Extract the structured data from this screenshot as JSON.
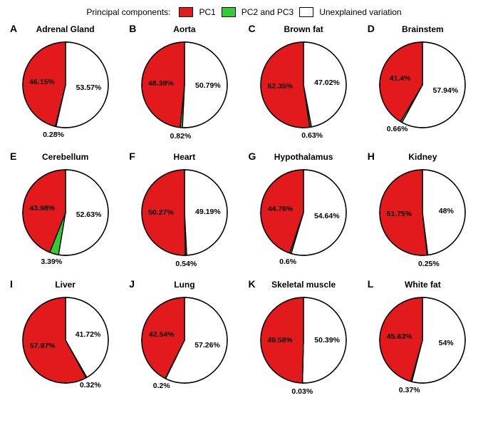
{
  "legend": {
    "title": "Principal components:",
    "items": [
      {
        "label": "PC1",
        "color": "#e31a1c"
      },
      {
        "label": "PC2 and PC3",
        "color": "#33cc33"
      },
      {
        "label": "Unexplained variation",
        "color": "#ffffff"
      }
    ]
  },
  "styling": {
    "stroke": "#000000",
    "stroke_width": 1.4,
    "radius": 60,
    "label_fontsize": 10.5,
    "title_fontsize": 12,
    "letter_fontsize": 14,
    "font_family": "Arial",
    "background": "#ffffff"
  },
  "panels": [
    {
      "letter": "A",
      "title": "Adrenal Gland",
      "pc1": 46.15,
      "pc23": 0.28,
      "unexp": 53.57
    },
    {
      "letter": "B",
      "title": "Aorta",
      "pc1": 48.38,
      "pc23": 0.82,
      "unexp": 50.79
    },
    {
      "letter": "C",
      "title": "Brown fat",
      "pc1": 52.35,
      "pc23": 0.63,
      "unexp": 47.02
    },
    {
      "letter": "D",
      "title": "Brainstem",
      "pc1": 41.4,
      "pc23": 0.66,
      "unexp": 57.94
    },
    {
      "letter": "E",
      "title": "Cerebellum",
      "pc1": 43.98,
      "pc23": 3.39,
      "unexp": 52.63
    },
    {
      "letter": "F",
      "title": "Heart",
      "pc1": 50.27,
      "pc23": 0.54,
      "unexp": 49.19
    },
    {
      "letter": "G",
      "title": "Hypothalamus",
      "pc1": 44.76,
      "pc23": 0.6,
      "unexp": 54.64
    },
    {
      "letter": "H",
      "title": "Kidney",
      "pc1": 51.75,
      "pc23": 0.25,
      "unexp": 48.0
    },
    {
      "letter": "I",
      "title": "Liver",
      "pc1": 57.97,
      "pc23": 0.32,
      "unexp": 41.72
    },
    {
      "letter": "J",
      "title": "Lung",
      "pc1": 42.54,
      "pc23": 0.2,
      "unexp": 57.26
    },
    {
      "letter": "K",
      "title": "Skeletal muscle",
      "pc1": 49.58,
      "pc23": 0.03,
      "unexp": 50.39
    },
    {
      "letter": "L",
      "title": "White fat",
      "pc1": 45.63,
      "pc23": 0.37,
      "unexp": 54.0
    }
  ]
}
